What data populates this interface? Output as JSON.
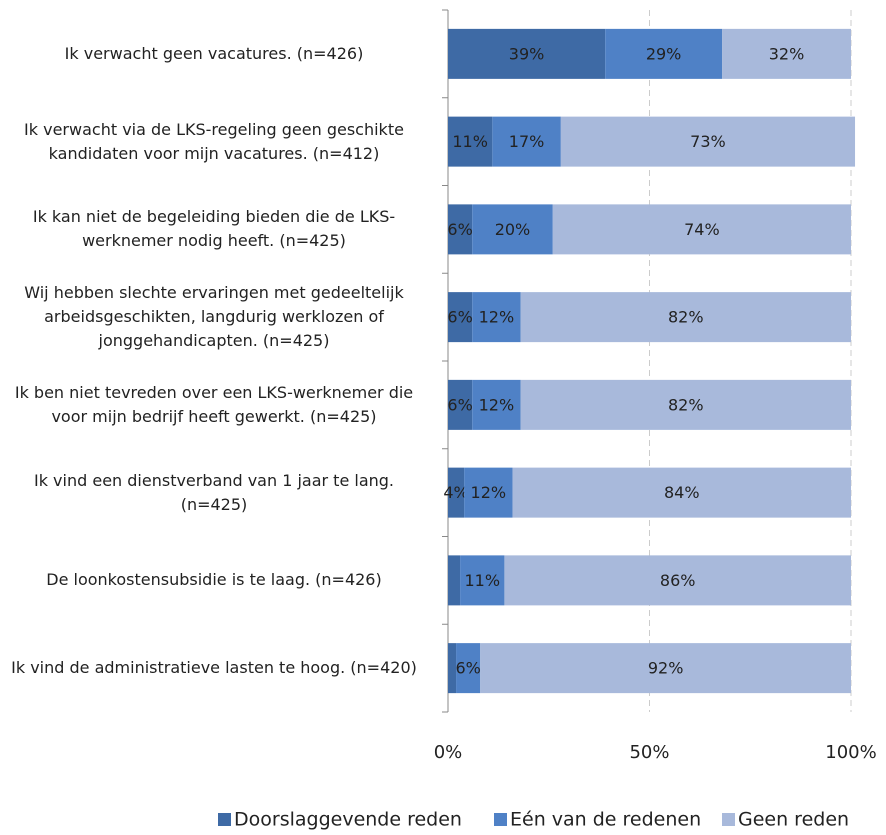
{
  "chart_data": {
    "type": "stacked_bar_horizontal",
    "categories": [
      "Ik verwacht geen vacatures. (n=426)",
      "Ik verwacht via de LKS-regeling geen geschikte kandidaten voor mijn vacatures. (n=412)",
      "Ik kan niet de begeleiding bieden die de LKS-werknemer nodig heeft. (n=425)",
      "Wij hebben slechte ervaringen met gedeeltelijk arbeidsgeschikten, langdurig werklozen of jonggehandicapten. (n=425)",
      "Ik ben niet tevreden over een LKS-werknemer die voor mijn bedrijf heeft gewerkt. (n=425)",
      "Ik vind een dienstverband van 1 jaar te lang. (n=425)",
      "De loonkostensubsidie is te laag. (n=426)",
      "Ik vind de administratieve lasten te hoog. (n=420)"
    ],
    "series": [
      {
        "name": "Doorslaggevende reden",
        "color": "#3e6aa5",
        "values": [
          39,
          11,
          6,
          6,
          6,
          4,
          3,
          2
        ],
        "value_labels": [
          "39%",
          "11%",
          "6%",
          "6%",
          "6%",
          "4%",
          null,
          null
        ]
      },
      {
        "name": "Eén van de redenen",
        "color": "#4f81c6",
        "values": [
          29,
          17,
          20,
          12,
          12,
          12,
          11,
          6
        ],
        "value_labels": [
          "29%",
          "17%",
          "20%",
          "12%",
          "12%",
          "12%",
          "11%",
          "6%"
        ]
      },
      {
        "name": "Geen reden",
        "color": "#a8b9db",
        "values": [
          32,
          73,
          74,
          82,
          82,
          84,
          86,
          92
        ],
        "value_labels": [
          "32%",
          "73%",
          "74%",
          "82%",
          "82%",
          "84%",
          "86%",
          "92%"
        ]
      }
    ],
    "xlim": [
      0,
      100
    ],
    "xticks": [
      {
        "value": 0,
        "label": "0%"
      },
      {
        "value": 50,
        "label": "50%"
      },
      {
        "value": 100,
        "label": "100%"
      }
    ],
    "grid": true,
    "legend": "bottom"
  }
}
